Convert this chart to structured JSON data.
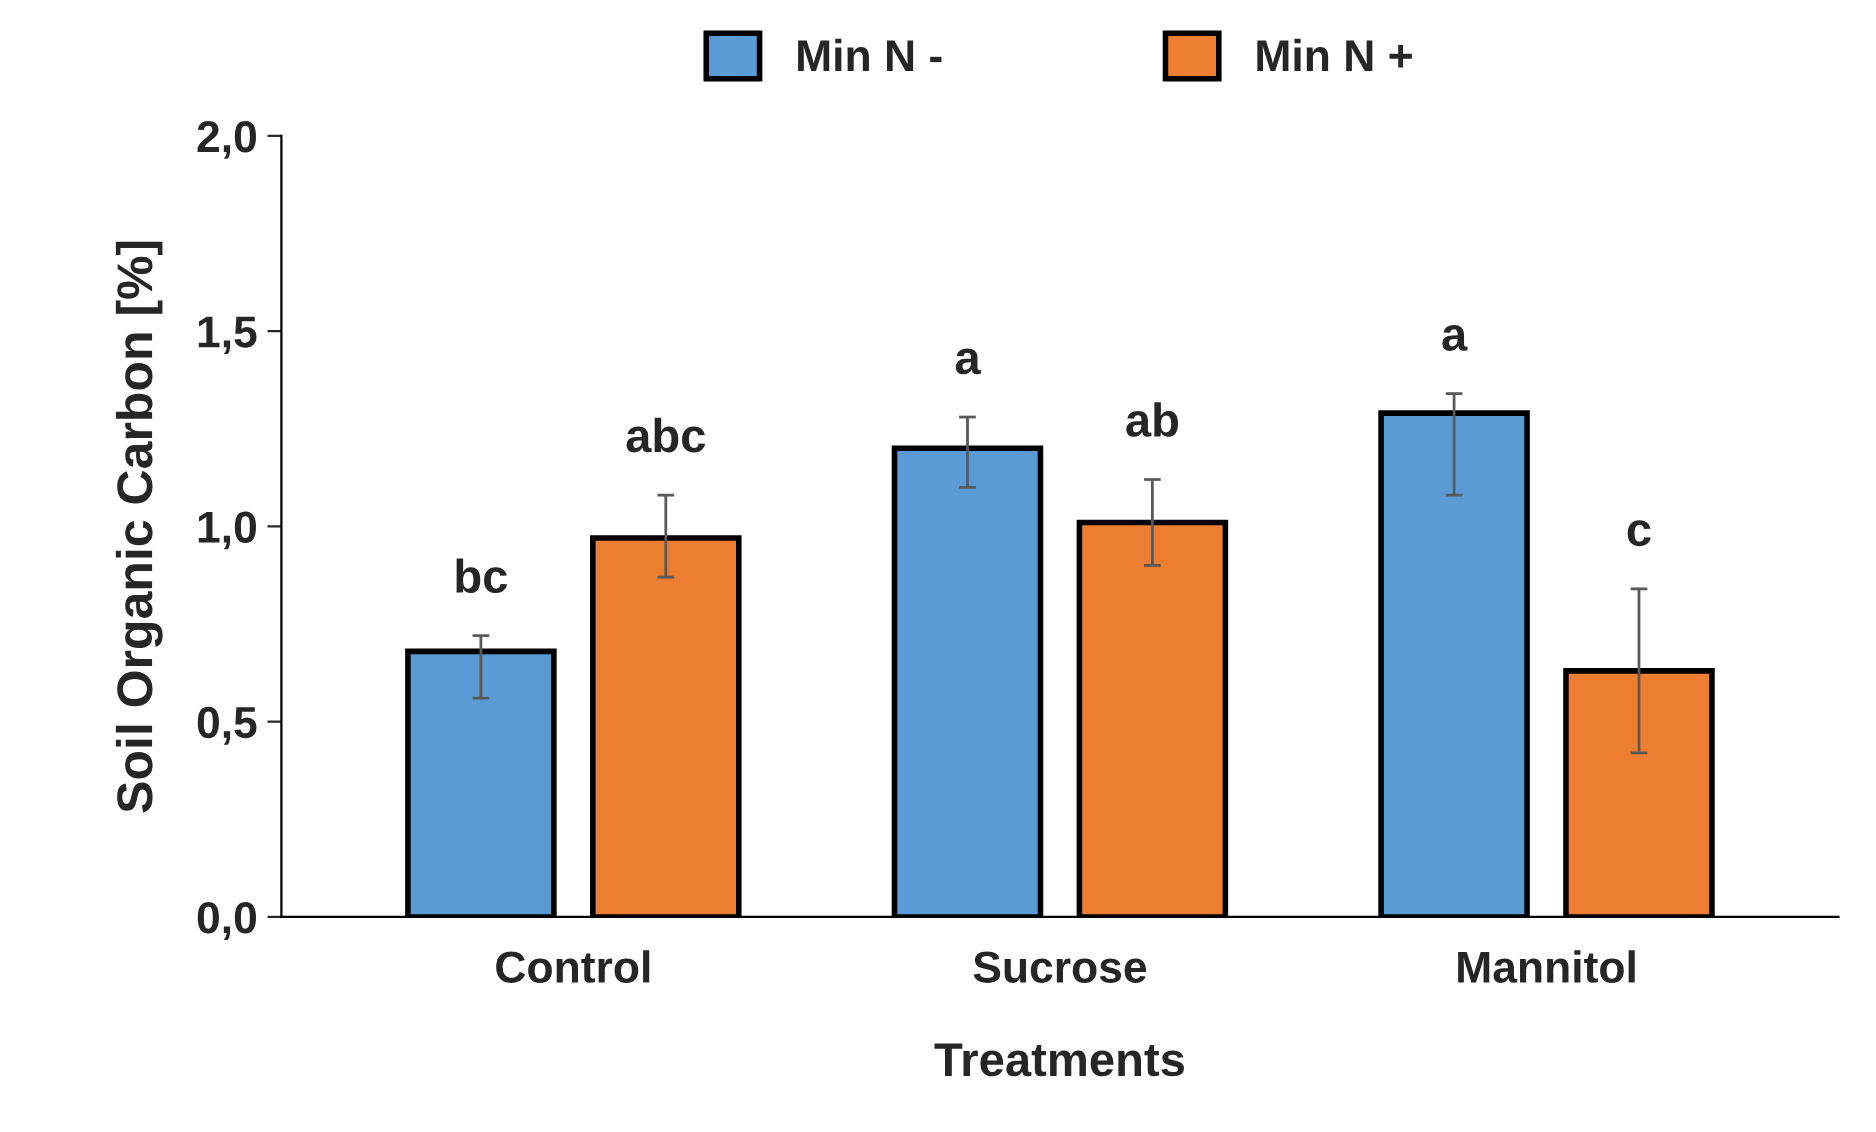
{
  "chart_data": {
    "type": "bar",
    "xlabel": "Treatments",
    "ylabel": "Soil Organic Carbon [%]",
    "categories": [
      "Control",
      "Sucrose",
      "Mannitol"
    ],
    "series": [
      {
        "name": "Min N -",
        "color": "#5b9bd5",
        "values": [
          0.68,
          1.2,
          1.29
        ],
        "errors": [
          [
            0.56,
            0.72
          ],
          [
            1.1,
            1.28
          ],
          [
            1.08,
            1.34
          ]
        ],
        "value_labels": [
          "bc",
          "a",
          "a"
        ]
      },
      {
        "name": "Min N +",
        "color": "#ed7d31",
        "values": [
          0.97,
          1.01,
          0.63
        ],
        "errors": [
          [
            0.87,
            1.08
          ],
          [
            0.9,
            1.12
          ],
          [
            0.42,
            0.84
          ]
        ],
        "value_labels": [
          "abc",
          "ab",
          "c"
        ]
      }
    ],
    "ylim": [
      0,
      2
    ],
    "yticks": [
      {
        "value": 0,
        "label": "0,0"
      },
      {
        "value": 0.5,
        "label": "0,5"
      },
      {
        "value": 1,
        "label": "1,0"
      },
      {
        "value": 1.5,
        "label": "1,5"
      },
      {
        "value": 2,
        "label": "2,0"
      }
    ],
    "legend": "top",
    "grid": false
  }
}
